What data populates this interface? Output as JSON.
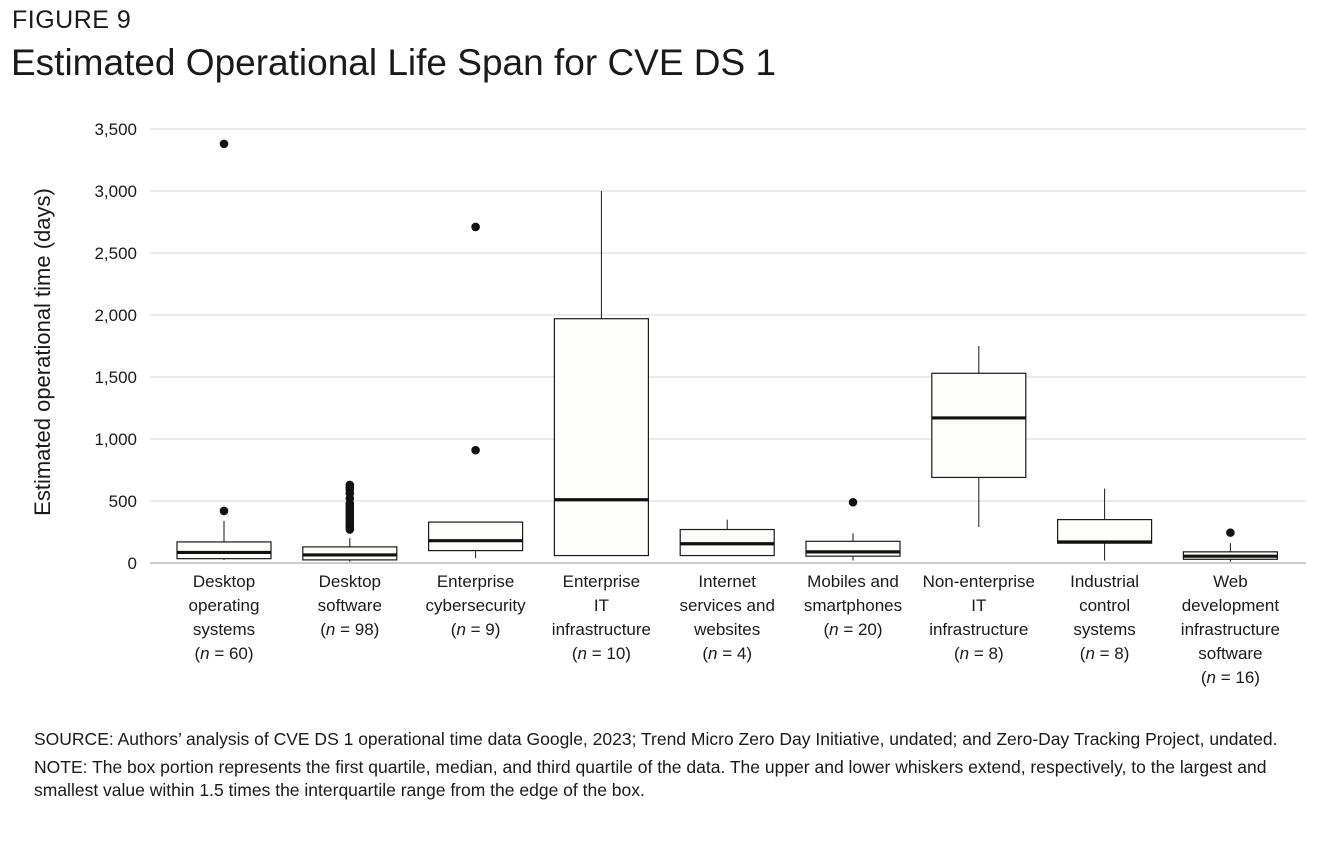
{
  "figure_label": "FIGURE 9",
  "title": "Estimated Operational Life Span for CVE DS 1",
  "source_note": "SOURCE: Authors’ analysis of CVE DS 1 operational time data Google, 2023; Trend Micro Zero Day Initiative, undated; and Zero-Day Tracking Project, undated.",
  "box_note": "NOTE: The box portion represents the first quartile, median, and third quartile of the data. The upper and lower whiskers extend, respectively, to the largest and smallest value within 1.5 times the interquartile range from the edge of the box.",
  "chart_data": {
    "type": "boxplot",
    "ylabel": "Estimated operational time (days)",
    "xlabel": "",
    "ylim": [
      0,
      3500
    ],
    "yticks": [
      0,
      500,
      1000,
      1500,
      2000,
      2500,
      3000,
      3500
    ],
    "ytick_labels": [
      "0",
      "500",
      "1,000",
      "1,500",
      "2,000",
      "2,500",
      "3,000",
      "3,500"
    ],
    "grid": true,
    "categories": [
      {
        "label_lines": [
          "Desktop",
          "operating",
          "systems"
        ],
        "n_label": "60",
        "whisker_low": 25,
        "q1": 35,
        "median": 85,
        "q3": 170,
        "whisker_high": 340,
        "outliers": [
          420,
          3380
        ]
      },
      {
        "label_lines": [
          "Desktop",
          "software"
        ],
        "n_label": "98",
        "whisker_low": 10,
        "q1": 25,
        "median": 65,
        "q3": 130,
        "whisker_high": 200,
        "outliers": [
          270,
          290,
          300,
          320,
          340,
          360,
          380,
          400,
          420,
          440,
          460,
          480,
          520,
          560,
          590,
          610,
          630
        ]
      },
      {
        "label_lines": [
          "Enterprise",
          "cybersecurity"
        ],
        "n_label": "9",
        "whisker_low": 40,
        "q1": 100,
        "median": 180,
        "q3": 330,
        "whisker_high": 330,
        "outliers": [
          910,
          2710
        ]
      },
      {
        "label_lines": [
          "Enterprise",
          "IT",
          "infrastructure"
        ],
        "n_label": "10",
        "whisker_low": 60,
        "q1": 60,
        "median": 510,
        "q3": 1970,
        "whisker_high": 3000,
        "outliers": []
      },
      {
        "label_lines": [
          "Internet",
          "services and",
          "websites"
        ],
        "n_label": "4",
        "whisker_low": 60,
        "q1": 60,
        "median": 155,
        "q3": 270,
        "whisker_high": 350,
        "outliers": []
      },
      {
        "label_lines": [
          "Mobiles and",
          "smartphones"
        ],
        "n_label": "20",
        "whisker_low": 20,
        "q1": 55,
        "median": 90,
        "q3": 175,
        "whisker_high": 240,
        "outliers": [
          490
        ]
      },
      {
        "label_lines": [
          "Non-enterprise",
          "IT",
          "infrastructure"
        ],
        "n_label": "8",
        "whisker_low": 290,
        "q1": 690,
        "median": 1170,
        "q3": 1530,
        "whisker_high": 1750,
        "outliers": []
      },
      {
        "label_lines": [
          "Industrial",
          "control",
          "systems"
        ],
        "n_label": "8",
        "whisker_low": 20,
        "q1": 160,
        "median": 170,
        "q3": 350,
        "whisker_high": 600,
        "outliers": []
      },
      {
        "label_lines": [
          "Web",
          "development",
          "infrastructure",
          "software"
        ],
        "n_label": "16",
        "whisker_low": 10,
        "q1": 30,
        "median": 55,
        "q3": 90,
        "whisker_high": 160,
        "outliers": [
          245
        ]
      }
    ]
  }
}
